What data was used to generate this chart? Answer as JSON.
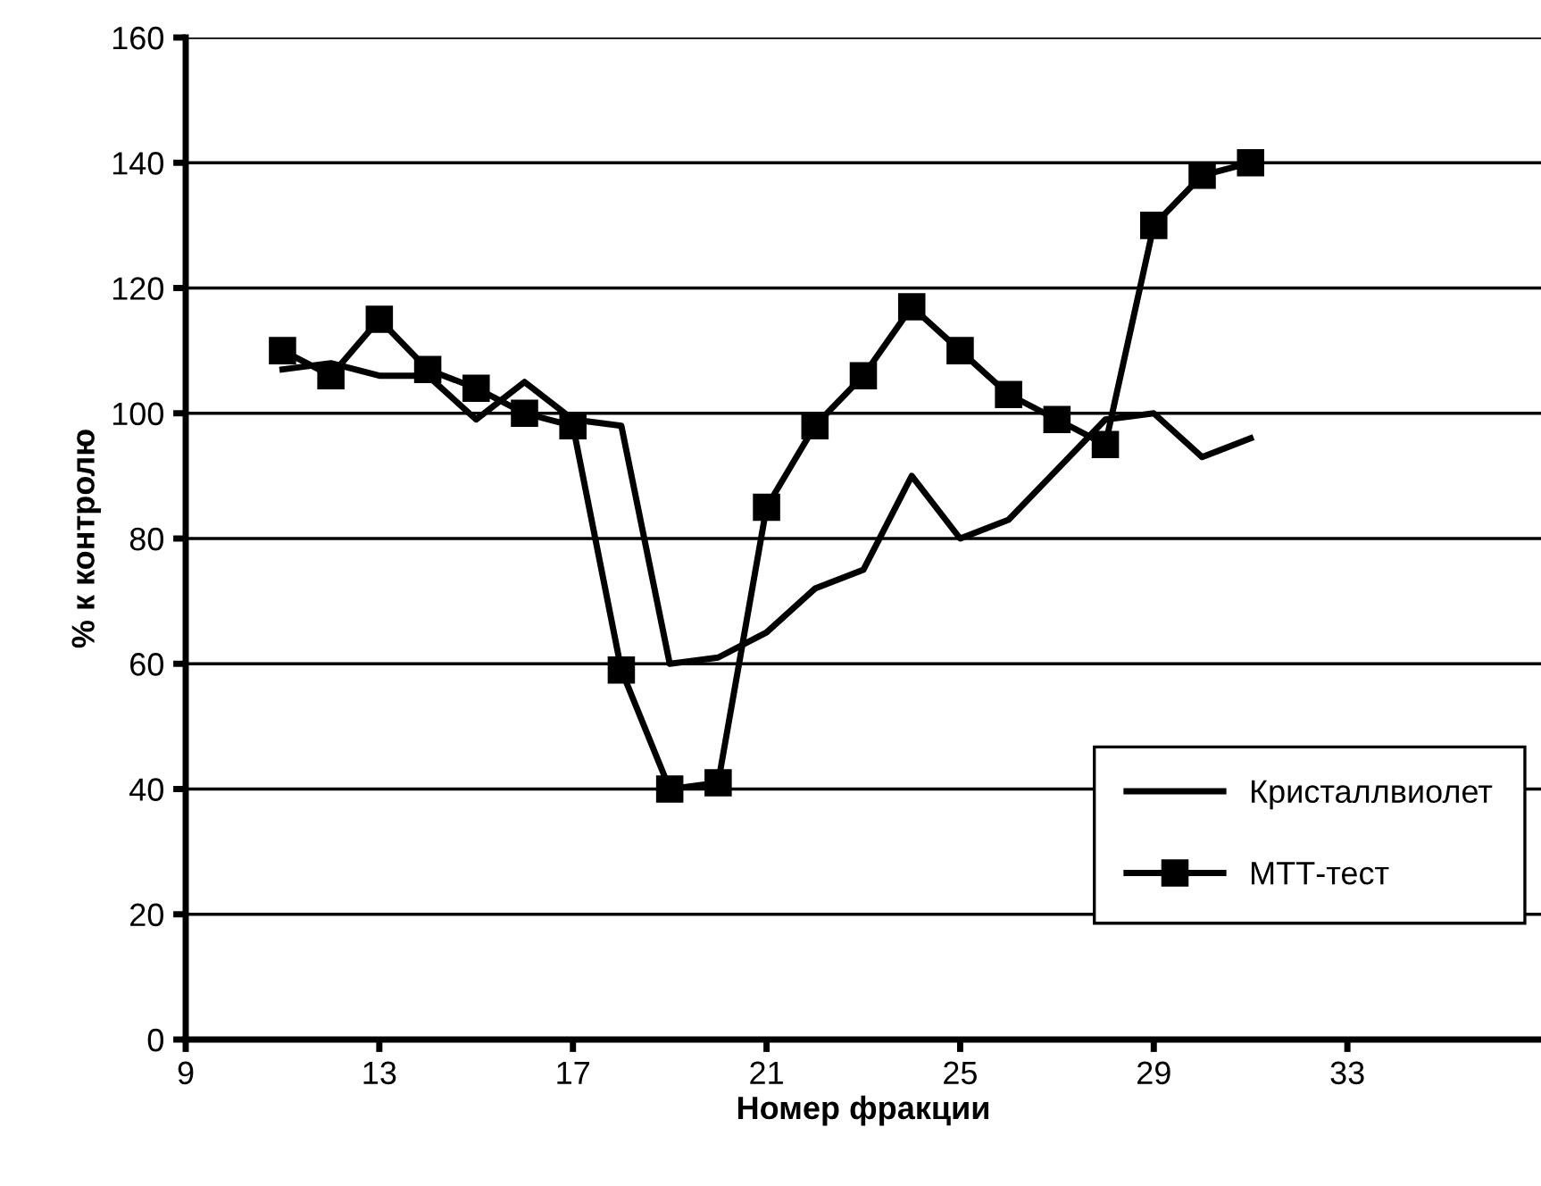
{
  "chart_data": {
    "type": "line",
    "xlabel": "Номер фракции",
    "ylabel": "% к контролю",
    "x": [
      11,
      12,
      13,
      14,
      15,
      16,
      17,
      18,
      19,
      20,
      21,
      22,
      23,
      24,
      25,
      26,
      27,
      28,
      29,
      30,
      31
    ],
    "series": [
      {
        "name": "Кристаллвиолет",
        "color": "#000000",
        "marker": "none",
        "values": [
          107,
          108,
          106,
          106,
          99,
          105,
          99,
          98,
          60,
          61,
          65,
          72,
          75,
          90,
          80,
          83,
          91,
          99,
          100,
          93,
          96
        ]
      },
      {
        "name": "МТТ-тест",
        "color": "#000000",
        "marker": "square",
        "values": [
          110,
          106,
          115,
          107,
          104,
          100,
          98,
          59,
          40,
          41,
          85,
          98,
          106,
          117,
          110,
          103,
          99,
          95,
          130,
          138,
          140
        ]
      }
    ],
    "xlim": [
      9,
      37
    ],
    "xticks": [
      9,
      13,
      17,
      21,
      25,
      29,
      33
    ],
    "ylim": [
      0,
      160
    ],
    "yticks": [
      0,
      20,
      40,
      60,
      80,
      100,
      120,
      140,
      160
    ],
    "grid": "y",
    "legend": "bottom right",
    "line_style": "solid"
  }
}
